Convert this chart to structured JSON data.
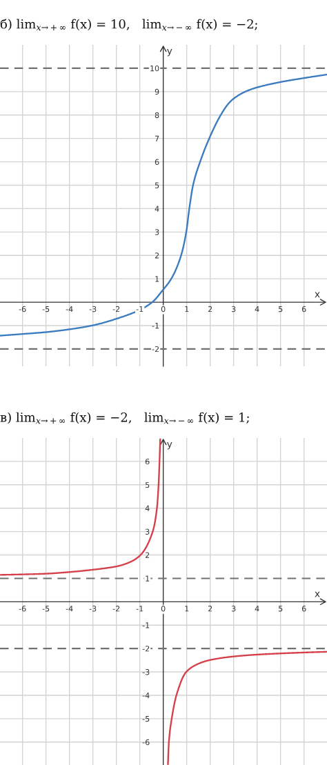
{
  "chart_data": [
    {
      "type": "line",
      "title": "б) lim$_{x→+∞}$ f(x) = 10,   lim$_{x→−∞}$ f(x) = −2;",
      "xlabel": "x",
      "ylabel": "y",
      "xlim": [
        -6.96,
        6.98
      ],
      "ylim": [
        -2.74,
        11.0
      ],
      "xticks": [
        -6,
        -5,
        -4,
        -3,
        -2,
        -1,
        0,
        1,
        2,
        3,
        4,
        5,
        6
      ],
      "yticks": [
        -1,
        1,
        2,
        3,
        4,
        5,
        6,
        7,
        8,
        9
      ],
      "grid": true,
      "ref_lines": [
        {
          "axis": "y",
          "value": 10,
          "label": "10",
          "color": "#707070",
          "line_style": "dashed"
        },
        {
          "axis": "y",
          "value": -2,
          "label": "-2",
          "color": "#707070",
          "line_style": "dashed"
        }
      ],
      "series": [
        {
          "color": "#3b7bc0",
          "x": [
            -6.96,
            -6,
            -5,
            -4,
            -3,
            -2,
            -1,
            -0.47,
            0,
            0.34,
            0.76,
            0.98,
            1.11,
            1.27,
            1.57,
            1.96,
            2.45,
            2.79,
            3,
            3.5,
            4,
            5,
            6,
            6.98
          ],
          "values": [
            -1.43,
            -1.36,
            -1.28,
            -1.16,
            -0.99,
            -0.71,
            -0.33,
            0,
            0.54,
            1,
            2,
            3,
            4,
            5,
            6,
            7,
            8,
            8.5,
            8.7,
            9,
            9.18,
            9.41,
            9.58,
            9.73
          ]
        }
      ]
    },
    {
      "type": "line",
      "title": "в) lim$_{x→+∞}$ f(x) = −2,   lim$_{x→−∞}$ f(x) = 1;",
      "xlabel": "x",
      "ylabel": "y",
      "xlim": [
        -6.96,
        6.98
      ],
      "ylim": [
        -6.98,
        7.0
      ],
      "xticks": [
        -6,
        -5,
        -4,
        -3,
        -2,
        -1,
        0,
        1,
        2,
        3,
        4,
        5,
        6
      ],
      "yticks": [
        -6,
        -5,
        -4,
        -3,
        -1,
        2,
        3,
        4,
        5,
        6
      ],
      "grid": true,
      "ref_lines": [
        {
          "axis": "y",
          "value": 1,
          "label": "1",
          "color": "#707070",
          "line_style": "dashed"
        },
        {
          "axis": "y",
          "value": -2,
          "label": "-2",
          "color": "#707070",
          "line_style": "dashed"
        }
      ],
      "series": [
        {
          "color": "#d5404a",
          "x": [
            -6.96,
            -6,
            -5,
            -4,
            -3,
            -2,
            -1.5,
            -1,
            -0.45,
            -0.27,
            -0.2,
            -0.16,
            -0.13
          ],
          "values": [
            1.15,
            1.17,
            1.2,
            1.27,
            1.37,
            1.51,
            1.66,
            1.97,
            3,
            4,
            5,
            6,
            6.95
          ]
        },
        {
          "color": "#d5404a",
          "x": [
            0.2,
            0.24,
            0.36,
            0.56,
            0.98,
            1.5,
            2,
            3,
            4,
            5,
            6,
            6.98
          ],
          "values": [
            -6.95,
            -6,
            -5,
            -4,
            -3,
            -2.65,
            -2.49,
            -2.34,
            -2.26,
            -2.21,
            -2.17,
            -2.14
          ]
        }
      ]
    }
  ]
}
